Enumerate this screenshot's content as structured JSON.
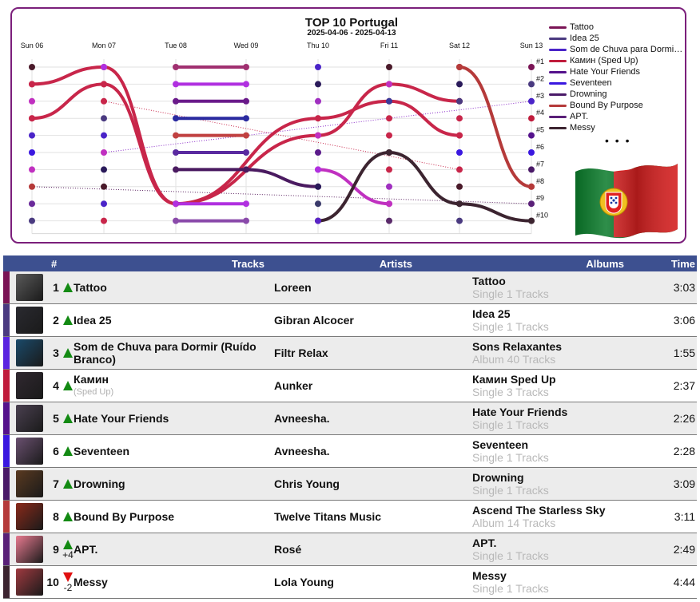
{
  "chart_data": {
    "type": "line",
    "title": "TOP 10 Portugal",
    "subtitle": "2025-04-06 - 2025-04-13",
    "x_dates": [
      "2025-04-06",
      "2025-04-07",
      "2025-04-08",
      "2025-04-09",
      "2025-04-10",
      "2025-04-11",
      "2025-04-12",
      "2025-04-13"
    ],
    "x_labels": [
      "Sun 06",
      "Mon 07",
      "Tue 08",
      "Wed 09",
      "Thu 10",
      "Fri 11",
      "Sat 12",
      "Sun 13"
    ],
    "y_labels": [
      "#1",
      "#2",
      "#3",
      "#4",
      "#5",
      "#6",
      "#7",
      "#8",
      "#9",
      "#10"
    ],
    "ylim": [
      1,
      10
    ],
    "grid": true,
    "legend_position": "right",
    "legend_more": "• • •",
    "series": [
      {
        "name": "Tattoo",
        "color": "#7a1455",
        "ranks": [
          null,
          null,
          null,
          null,
          null,
          null,
          null,
          1
        ]
      },
      {
        "name": "Idea 25",
        "color": "#4a3a80",
        "ranks": [
          null,
          null,
          null,
          null,
          null,
          null,
          null,
          2
        ]
      },
      {
        "name": "Som de Chuva para Dormir (Ruído Branco)",
        "color": "#4a24c8",
        "ranks": [
          null,
          null,
          null,
          null,
          null,
          null,
          null,
          3
        ]
      },
      {
        "name": "Камин (Sped Up)",
        "color": "#c01c3c",
        "ranks": [
          null,
          null,
          null,
          null,
          null,
          null,
          null,
          4
        ]
      },
      {
        "name": "Hate Your Friends",
        "color": "#55128c",
        "ranks": [
          null,
          null,
          null,
          null,
          null,
          null,
          null,
          5
        ]
      },
      {
        "name": "Seventeen",
        "color": "#3a18e0",
        "ranks": [
          null,
          null,
          null,
          null,
          null,
          null,
          null,
          6
        ]
      },
      {
        "name": "Drowning",
        "color": "#4a1a68",
        "ranks": [
          null,
          null,
          null,
          null,
          null,
          null,
          null,
          7
        ]
      },
      {
        "name": "Bound By Purpose",
        "color": "#b53a3a",
        "ranks": [
          null,
          null,
          null,
          null,
          null,
          null,
          null,
          8
        ]
      },
      {
        "name": "APT.",
        "color": "#5a2078",
        "ranks": [
          null,
          null,
          null,
          null,
          null,
          null,
          null,
          9
        ]
      },
      {
        "name": "Messy",
        "color": "#3c2430",
        "ranks": [
          null,
          null,
          null,
          null,
          null,
          null,
          null,
          10
        ]
      }
    ],
    "plotted_lines": [
      {
        "color": "#c8264a",
        "style": "solid",
        "ranks": [
          2,
          1,
          null,
          9,
          null,
          null,
          null,
          null
        ],
        "connect_to": {
          "from": [
            1,
            1
          ],
          "through": [
            [
              2,
              9
            ],
            [
              3,
              9
            ]
          ]
        },
        "points": [
          [
            0,
            2
          ],
          [
            1,
            1
          ],
          [
            2,
            9
          ],
          [
            4,
            5
          ],
          [
            5,
            2
          ],
          [
            6,
            3
          ]
        ]
      },
      {
        "color": "#c8264a",
        "style": "solid",
        "points": [
          [
            0,
            4
          ],
          [
            1,
            2
          ],
          [
            2,
            9
          ],
          [
            4,
            4
          ],
          [
            5,
            3
          ],
          [
            6,
            5
          ]
        ]
      },
      {
        "color": "#a03070",
        "style": "solid",
        "points": [
          [
            2,
            1
          ],
          [
            3,
            1
          ]
        ]
      },
      {
        "color": "#b030e0",
        "style": "solid",
        "points": [
          [
            2,
            2
          ],
          [
            3,
            2
          ]
        ]
      },
      {
        "color": "#6a1a8a",
        "style": "solid",
        "points": [
          [
            2,
            3
          ],
          [
            3,
            3
          ]
        ]
      },
      {
        "color": "#2a2aa0",
        "style": "solid",
        "points": [
          [
            2,
            4
          ],
          [
            3,
            4
          ]
        ]
      },
      {
        "color": "#c04040",
        "style": "solid",
        "points": [
          [
            2,
            5
          ],
          [
            3,
            5
          ]
        ]
      },
      {
        "color": "#5a2aa0",
        "style": "solid",
        "points": [
          [
            2,
            6
          ],
          [
            3,
            6
          ]
        ]
      },
      {
        "color": "#4a1a60",
        "style": "solid",
        "points": [
          [
            2,
            7
          ],
          [
            3,
            7
          ],
          [
            4,
            8
          ]
        ]
      },
      {
        "color": "#b030e0",
        "style": "solid",
        "points": [
          [
            2,
            9
          ],
          [
            3,
            9
          ]
        ]
      },
      {
        "color": "#8a4aaa",
        "style": "solid",
        "points": [
          [
            2,
            10
          ],
          [
            3,
            10
          ]
        ]
      },
      {
        "color": "#c030c0",
        "style": "solid",
        "points": [
          [
            4,
            7
          ],
          [
            5,
            9
          ]
        ]
      },
      {
        "color": "#3c2430",
        "style": "solid",
        "points": [
          [
            4,
            10
          ],
          [
            5,
            6
          ],
          [
            6,
            9
          ],
          [
            7,
            10
          ]
        ]
      },
      {
        "color": "#b53a3a",
        "style": "solid",
        "points": [
          [
            6,
            1
          ],
          [
            7,
            8
          ]
        ]
      },
      {
        "color": "#c8264a",
        "style": "dotted",
        "points": [
          [
            1,
            3
          ],
          [
            6,
            7
          ]
        ]
      },
      {
        "color": "#8a2cc8",
        "style": "dotted",
        "points": [
          [
            1,
            6
          ],
          [
            7,
            3
          ]
        ]
      },
      {
        "color": "#5a2060",
        "style": "dotted",
        "points": [
          [
            0,
            8
          ],
          [
            7,
            9
          ]
        ]
      }
    ],
    "dots": [
      {
        "x": 0,
        "ranks": [
          1,
          2,
          3,
          4,
          5,
          6,
          7,
          8,
          9,
          10
        ],
        "colors": [
          "#4a1a2a",
          "#c8264a",
          "#c030c0",
          "#c8264a",
          "#4a24c8",
          "#3a18e0",
          "#c030c0",
          "#b53a3a",
          "#6a2a9a",
          "#4a3a80"
        ]
      },
      {
        "x": 1,
        "ranks": [
          1,
          2,
          3,
          4,
          5,
          6,
          7,
          8,
          9,
          10
        ],
        "colors": [
          "#b030e0",
          "#c8264a",
          "#c8264a",
          "#4a3a80",
          "#4a24c8",
          "#c030c0",
          "#2a1a5a",
          "#4a1a2a",
          "#4a24c8",
          "#c8264a"
        ]
      },
      {
        "x": 4,
        "ranks": [
          1,
          2,
          3,
          4,
          5,
          6,
          7,
          8,
          9,
          10
        ],
        "colors": [
          "#4a24c8",
          "#2a1a5a",
          "#a030c0",
          "#c8264a",
          "#c030c0",
          "#5a1a8a",
          "#b030e0",
          "#2a1a5a",
          "#3a3a6a",
          "#5a24c8"
        ]
      },
      {
        "x": 5,
        "ranks": [
          1,
          2,
          3,
          4,
          5,
          6,
          7,
          8,
          9,
          10
        ],
        "colors": [
          "#4a1a2a",
          "#c030c0",
          "#3a3a9a",
          "#c8264a",
          "#c8264a",
          "#3c2430",
          "#c8264a",
          "#a030c0",
          "#c030c0",
          "#5a2a6a"
        ]
      },
      {
        "x": 6,
        "ranks": [
          1,
          2,
          3,
          4,
          5,
          6,
          7,
          8,
          9,
          10
        ],
        "colors": [
          "#b53a3a",
          "#2a1a5a",
          "#4a3a80",
          "#c8264a",
          "#c8264a",
          "#3a18e0",
          "#c8264a",
          "#4a1a2a",
          "#3c2430",
          "#4a3a80"
        ]
      },
      {
        "x": 7,
        "ranks": [
          1,
          2,
          3,
          4,
          5,
          6,
          7,
          8,
          9,
          10
        ],
        "colors": [
          "#7a1455",
          "#4a3a80",
          "#4a24c8",
          "#c01c3c",
          "#55128c",
          "#3a18e0",
          "#4a1a68",
          "#b53a3a",
          "#5a2078",
          "#3c2430"
        ]
      }
    ]
  },
  "table": {
    "headers": {
      "rank": "#",
      "tracks": "Tracks",
      "artists": "Artists",
      "albums": "Albums",
      "time": "Time"
    },
    "rows": [
      {
        "rank": "1",
        "movement": "up",
        "delta": "",
        "track": "Tattoo",
        "track_sub": "",
        "artist": "Loreen",
        "album": "Tattoo",
        "album_meta": "Single 1 Tracks",
        "time": "3:03",
        "strip": "#7a1455",
        "cover_bg": "#5a5a5a"
      },
      {
        "rank": "2",
        "movement": "up",
        "delta": "",
        "track": "Idea 25",
        "track_sub": "",
        "artist": "Gibran Alcocer",
        "album": "Idea 25",
        "album_meta": "Single 1 Tracks",
        "time": "3:06",
        "strip": "#4a3a80",
        "cover_bg": "#2a2a30"
      },
      {
        "rank": "3",
        "movement": "up",
        "delta": "",
        "track": "Som de Chuva para Dormir (Ruído Branco)",
        "track_sub": "",
        "artist": "Filtr Relax",
        "album": "Sons Relaxantes",
        "album_meta": "Album 40 Tracks",
        "time": "1:55",
        "strip": "#5a24e0",
        "cover_bg": "#1a4a6a"
      },
      {
        "rank": "4",
        "movement": "up",
        "delta": "",
        "track": "Камин",
        "track_sub": "(Sped Up)",
        "artist": "Aunker",
        "album": "Камин Sped Up",
        "album_meta": "Single 3 Tracks",
        "time": "2:37",
        "strip": "#c01c3c",
        "cover_bg": "#302830"
      },
      {
        "rank": "5",
        "movement": "up",
        "delta": "",
        "track": "Hate Your Friends",
        "track_sub": "",
        "artist": "Avneesha.",
        "album": "Hate Your Friends",
        "album_meta": "Single 1 Tracks",
        "time": "2:26",
        "strip": "#55128c",
        "cover_bg": "#4a4050"
      },
      {
        "rank": "6",
        "movement": "up",
        "delta": "",
        "track": "Seventeen",
        "track_sub": "",
        "artist": "Avneesha.",
        "album": "Seventeen",
        "album_meta": "Single 1 Tracks",
        "time": "2:28",
        "strip": "#3a18e0",
        "cover_bg": "#6a5070"
      },
      {
        "rank": "7",
        "movement": "up",
        "delta": "",
        "track": "Drowning",
        "track_sub": "",
        "artist": "Chris Young",
        "album": "Drowning",
        "album_meta": "Single 1 Tracks",
        "time": "3:09",
        "strip": "#4a1a68",
        "cover_bg": "#5a3a20"
      },
      {
        "rank": "8",
        "movement": "up",
        "delta": "",
        "track": "Bound By Purpose",
        "track_sub": "",
        "artist": "Twelve Titans Music",
        "album": "Ascend The Starless Sky",
        "album_meta": "Album 14 Tracks",
        "time": "3:11",
        "strip": "#b53a3a",
        "cover_bg": "#8a2a1a"
      },
      {
        "rank": "9",
        "movement": "up",
        "delta": "+4",
        "track": "APT.",
        "track_sub": "",
        "artist": "Rosé",
        "album": "APT.",
        "album_meta": "Single 1 Tracks",
        "time": "2:49",
        "strip": "#5a2078",
        "cover_bg": "#e87a90"
      },
      {
        "rank": "10",
        "movement": "down",
        "delta": "-2",
        "track": "Messy",
        "track_sub": "",
        "artist": "Lola Young",
        "album": "Messy",
        "album_meta": "Single 1 Tracks",
        "time": "4:44",
        "strip": "#3c2430",
        "cover_bg": "#a03a40"
      }
    ]
  }
}
